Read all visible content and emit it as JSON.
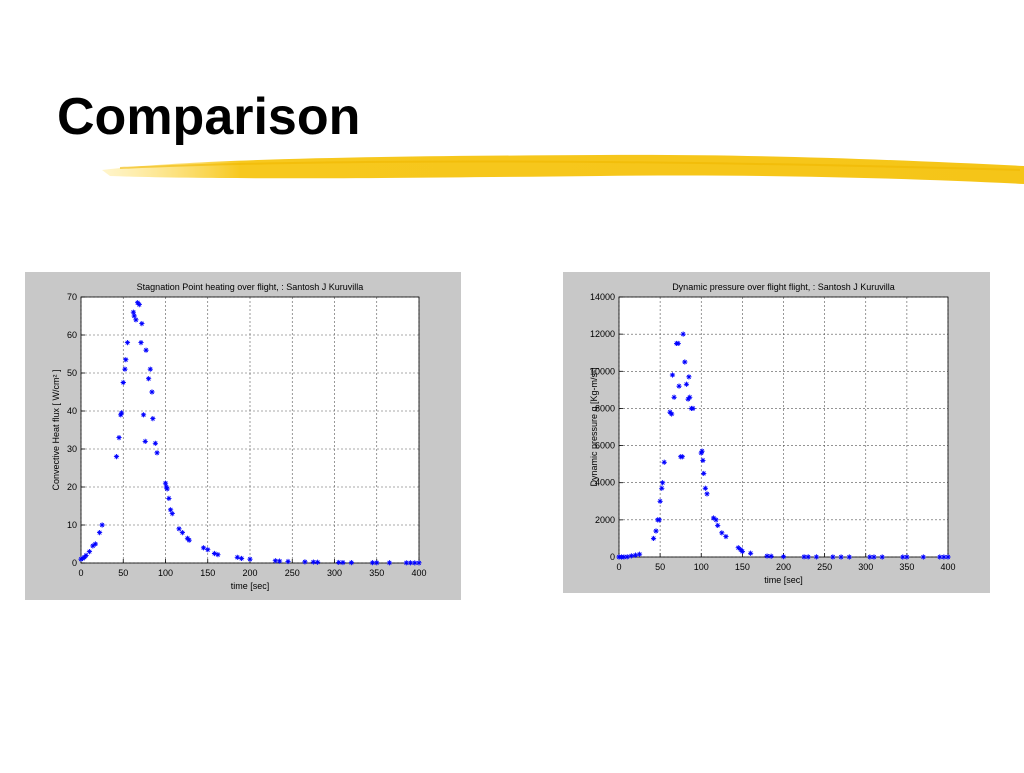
{
  "slide_title": "Comparison",
  "chart_data": [
    {
      "type": "scatter",
      "title": "Stagnation Point heating over flight, : Santosh J Kuruvilla",
      "x_label": "time [sec]",
      "y_label": "Convective Heat flux [ W/cm² ]",
      "marker": "*",
      "color": "#0000ff",
      "grid": true,
      "xlim": [
        0,
        400
      ],
      "xticks": [
        0,
        50,
        100,
        150,
        200,
        250,
        300,
        350,
        400
      ],
      "ylim": [
        0,
        70
      ],
      "yticks": [
        0,
        10,
        20,
        30,
        40,
        50,
        60,
        70
      ],
      "x": [
        0,
        2,
        4,
        6,
        10,
        14,
        17,
        22,
        25,
        42,
        45,
        47,
        48,
        50,
        52,
        53,
        55,
        62,
        63,
        65,
        67,
        69,
        71,
        72,
        74,
        76,
        77,
        80,
        82,
        84,
        85,
        88,
        90,
        100,
        101,
        102,
        104,
        106,
        108,
        116,
        120,
        126,
        128,
        145,
        150,
        158,
        162,
        185,
        190,
        200,
        230,
        235,
        245,
        265,
        275,
        280,
        305,
        310,
        320,
        345,
        350,
        365,
        385,
        390,
        395,
        400
      ],
      "values": [
        1,
        1.2,
        1.5,
        2,
        3,
        4.5,
        5,
        8,
        10,
        28,
        33,
        39,
        39.5,
        47.5,
        51,
        53.5,
        58,
        66,
        65,
        64,
        68.5,
        68,
        58,
        63,
        39,
        32,
        56,
        48.5,
        51,
        45,
        38,
        31.5,
        29,
        21,
        20,
        19.5,
        17,
        14,
        13,
        9,
        8,
        6.5,
        6,
        4,
        3.5,
        2.5,
        2.2,
        1.5,
        1.2,
        1,
        0.6,
        0.5,
        0.4,
        0.3,
        0.25,
        0.2,
        0.15,
        0.12,
        0.1,
        0.08,
        0.07,
        0.06,
        0.05,
        0.05,
        0.04,
        0.04
      ]
    },
    {
      "type": "scatter",
      "title": "Dynamic pressure over flight flight, : Santosh J Kuruvilla",
      "x_label": "time [sec]",
      "y_label": "Dynamic pressure q [Kg-m/s²]",
      "marker": "*",
      "color": "#0000ff",
      "grid": true,
      "xlim": [
        0,
        400
      ],
      "xticks": [
        0,
        50,
        100,
        150,
        200,
        250,
        300,
        350,
        400
      ],
      "ylim": [
        0,
        14000
      ],
      "yticks": [
        0,
        2000,
        4000,
        6000,
        8000,
        10000,
        12000,
        14000
      ],
      "x": [
        0,
        3,
        6,
        10,
        15,
        20,
        25,
        42,
        45,
        47,
        49,
        50,
        52,
        53,
        55,
        62,
        64,
        65,
        67,
        70,
        72,
        73,
        75,
        77,
        78,
        80,
        82,
        84,
        85,
        86,
        88,
        90,
        100,
        101,
        102,
        103,
        105,
        107,
        115,
        118,
        120,
        125,
        130,
        145,
        148,
        150,
        160,
        180,
        185,
        200,
        225,
        230,
        240,
        260,
        270,
        280,
        305,
        310,
        320,
        345,
        350,
        370,
        390,
        395,
        400
      ],
      "values": [
        0,
        0,
        0,
        10,
        60,
        100,
        150,
        1000,
        1400,
        2000,
        2000,
        3000,
        3700,
        4000,
        5100,
        7800,
        7700,
        9800,
        8600,
        11500,
        11500,
        9200,
        5400,
        5400,
        12000,
        10500,
        9300,
        8500,
        9700,
        8600,
        8000,
        8000,
        5600,
        5700,
        5200,
        4500,
        3700,
        3400,
        2100,
        2000,
        1700,
        1300,
        1100,
        500,
        400,
        300,
        200,
        50,
        40,
        20,
        10,
        8,
        5,
        3,
        2,
        2,
        1,
        1,
        1,
        0,
        0,
        0,
        0,
        0,
        0
      ]
    }
  ]
}
